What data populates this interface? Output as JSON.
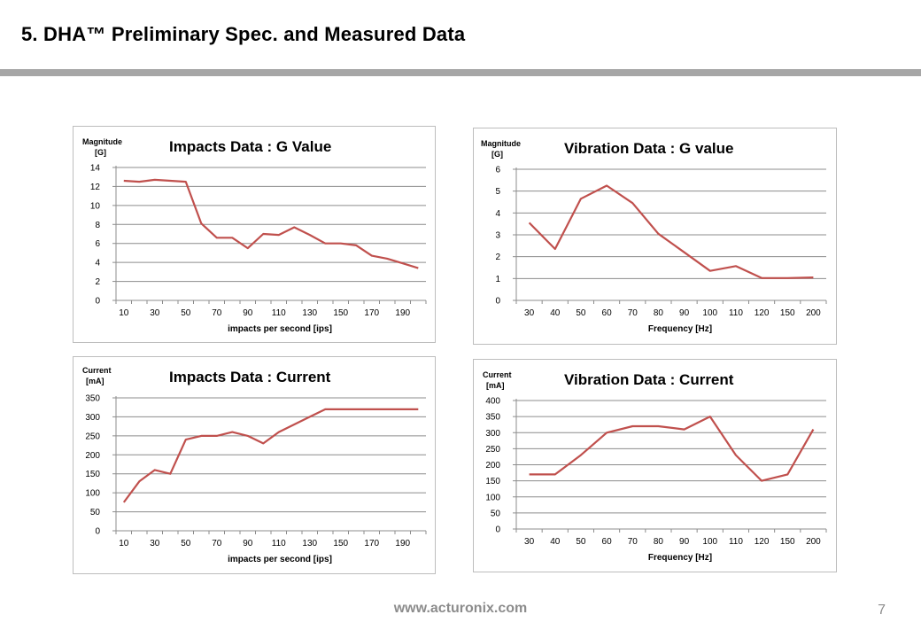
{
  "slide": {
    "title": "5. DHA™ Preliminary Spec. and Measured Data",
    "footer_url": "www.acturonix.com",
    "page_number": "7",
    "bar_color": "#a6a6a6"
  },
  "chart_data": [
    {
      "id": "impacts-g",
      "type": "line",
      "title": "Impacts Data : G Value",
      "ylabel": "Magnitude\n[G]",
      "xlabel": "impacts per second [ips]",
      "categories": [
        "10",
        "20",
        "30",
        "40",
        "50",
        "60",
        "70",
        "80",
        "90",
        "100",
        "110",
        "120",
        "130",
        "140",
        "150",
        "160",
        "170",
        "180",
        "190",
        "200"
      ],
      "tick_labels": [
        "10",
        "30",
        "50",
        "70",
        "90",
        "110",
        "130",
        "150",
        "170",
        "190"
      ],
      "yticks": [
        0,
        2,
        4,
        6,
        8,
        10,
        12,
        14
      ],
      "ylim": [
        0,
        14
      ],
      "grid": true,
      "color": "#c0504d",
      "series": [
        {
          "values": [
            12.6,
            12.5,
            12.7,
            12.6,
            12.5,
            8.1,
            6.6,
            6.6,
            5.5,
            7.0,
            6.9,
            7.7,
            6.9,
            6.0,
            6.0,
            5.8,
            4.7,
            4.4,
            3.9,
            3.4
          ]
        }
      ]
    },
    {
      "id": "vibration-g",
      "type": "line",
      "title": "Vibration Data : G value",
      "ylabel": "Magnitude\n[G]",
      "xlabel": "Frequency [Hz]",
      "categories": [
        "30",
        "40",
        "50",
        "60",
        "70",
        "80",
        "90",
        "100",
        "110",
        "120",
        "150",
        "200"
      ],
      "tick_labels": [
        "30",
        "40",
        "50",
        "60",
        "70",
        "80",
        "90",
        "100",
        "110",
        "120",
        "150",
        "200"
      ],
      "yticks": [
        0,
        1,
        2,
        3,
        4,
        5,
        6
      ],
      "ylim": [
        0,
        6
      ],
      "grid": true,
      "color": "#c0504d",
      "series": [
        {
          "values": [
            3.55,
            2.35,
            4.65,
            5.25,
            4.45,
            3.05,
            2.2,
            1.35,
            1.57,
            1.02,
            1.02,
            1.05
          ]
        }
      ]
    },
    {
      "id": "impacts-current",
      "type": "line",
      "title": "Impacts Data : Current",
      "ylabel": "Current\n[mA]",
      "xlabel": "impacts per second [ips]",
      "categories": [
        "10",
        "20",
        "30",
        "40",
        "50",
        "60",
        "70",
        "80",
        "90",
        "100",
        "110",
        "120",
        "130",
        "140",
        "150",
        "160",
        "170",
        "180",
        "190",
        "200"
      ],
      "tick_labels": [
        "10",
        "30",
        "50",
        "70",
        "90",
        "110",
        "130",
        "150",
        "170",
        "190"
      ],
      "yticks": [
        0,
        50,
        100,
        150,
        200,
        250,
        300,
        350
      ],
      "ylim": [
        0,
        350
      ],
      "grid": true,
      "color": "#c0504d",
      "series": [
        {
          "values": [
            75,
            130,
            160,
            150,
            240,
            250,
            250,
            260,
            250,
            230,
            260,
            280,
            300,
            320,
            320,
            320,
            320,
            320,
            320,
            320
          ]
        }
      ]
    },
    {
      "id": "vibration-current",
      "type": "line",
      "title": "Vibration Data : Current",
      "ylabel": "Current\n[mA]",
      "xlabel": "Frequency [Hz]",
      "categories": [
        "30",
        "40",
        "50",
        "60",
        "70",
        "80",
        "90",
        "100",
        "110",
        "120",
        "150",
        "200"
      ],
      "tick_labels": [
        "30",
        "40",
        "50",
        "60",
        "70",
        "80",
        "90",
        "100",
        "110",
        "120",
        "150",
        "200"
      ],
      "yticks": [
        0,
        50,
        100,
        150,
        200,
        250,
        300,
        350,
        400
      ],
      "ylim": [
        0,
        400
      ],
      "grid": true,
      "color": "#c0504d",
      "series": [
        {
          "values": [
            170,
            170,
            230,
            300,
            320,
            320,
            310,
            350,
            230,
            150,
            170,
            310
          ]
        }
      ]
    }
  ]
}
